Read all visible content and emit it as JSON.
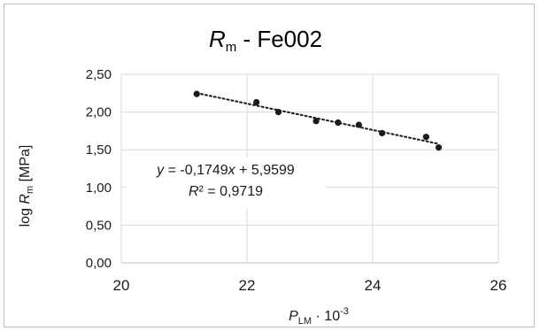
{
  "chart_data": {
    "type": "scatter",
    "title": {
      "main": "R",
      "sub": "m",
      "rest": " - Fe002"
    },
    "xlabel": {
      "main": "P",
      "sub": "LM",
      "rest": " · 10",
      "sup": "-3"
    },
    "ylabel": {
      "prefix": "log ",
      "main": "R",
      "sub": "m",
      "rest": " [MPa]"
    },
    "xlim": [
      20,
      26
    ],
    "ylim": [
      0,
      2.5
    ],
    "xticks": [
      "20",
      "22",
      "24",
      "26"
    ],
    "yticks": [
      "0,00",
      "0,50",
      "1,00",
      "1,50",
      "2,00",
      "2,50"
    ],
    "grid": true,
    "points": [
      {
        "x": 21.2,
        "y": 2.24
      },
      {
        "x": 22.15,
        "y": 2.13
      },
      {
        "x": 22.5,
        "y": 2.0
      },
      {
        "x": 23.1,
        "y": 1.88
      },
      {
        "x": 23.45,
        "y": 1.86
      },
      {
        "x": 23.78,
        "y": 1.83
      },
      {
        "x": 24.15,
        "y": 1.72
      },
      {
        "x": 24.85,
        "y": 1.67
      },
      {
        "x": 25.05,
        "y": 1.53
      }
    ],
    "trendline": {
      "style": "dotted",
      "slope": -0.1749,
      "intercept": 5.9599,
      "x_range": [
        21.2,
        25.05
      ],
      "equation_text": {
        "pre": "y",
        "mid": " = -0,1749",
        "var": "x",
        "post": " + 5,9599"
      },
      "r2_text": {
        "var": "R",
        "post": "² = 0,9719"
      }
    }
  }
}
